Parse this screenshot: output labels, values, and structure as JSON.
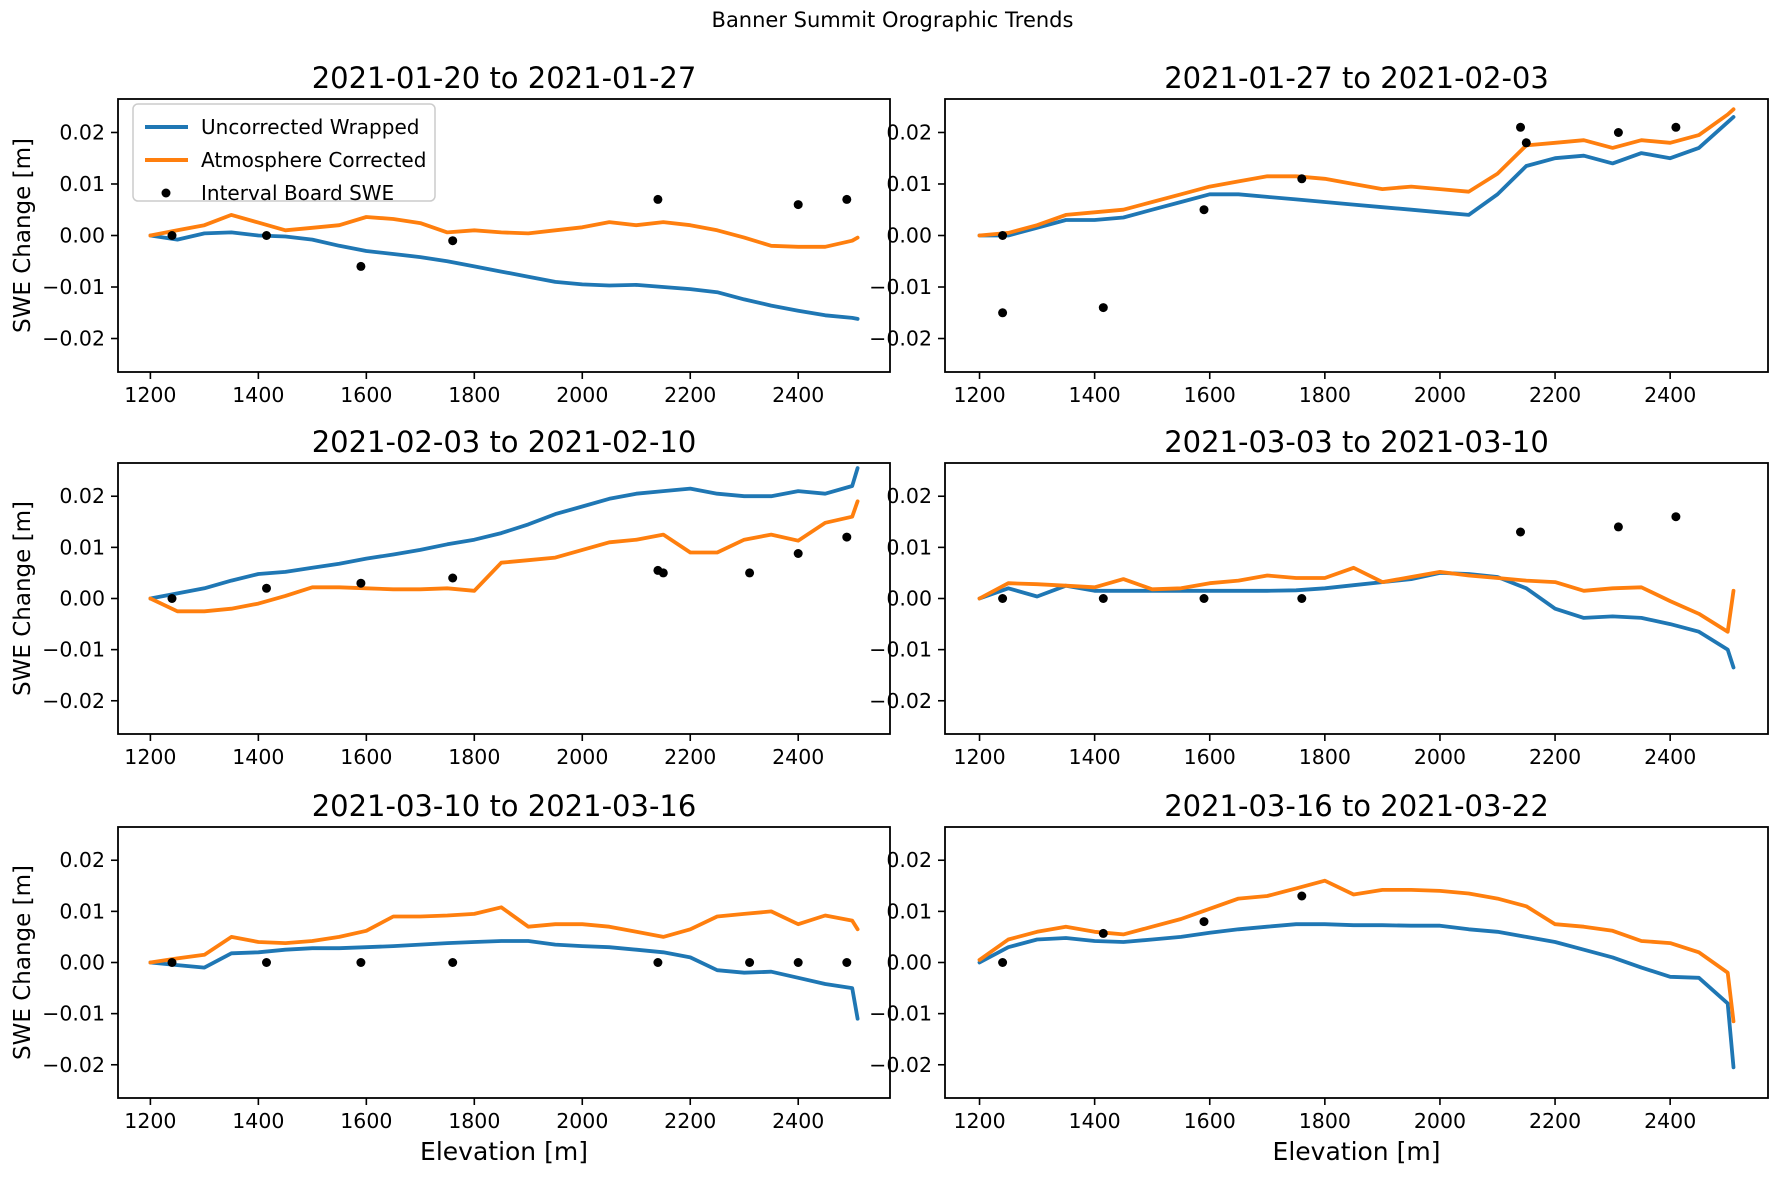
{
  "suptitle": "Banner Summit Orographic Trends",
  "axis": {
    "xlabel": "Elevation [m]",
    "ylabel": "SWE Change [m]",
    "xlim": [
      1140,
      2570
    ],
    "ylim": [
      -0.0265,
      0.0265
    ],
    "xticks": [
      1200,
      1400,
      1600,
      1800,
      2000,
      2200,
      2400
    ],
    "yticks": [
      {
        "value": 0.02,
        "label": "0.02"
      },
      {
        "value": 0.01,
        "label": "0.01"
      },
      {
        "value": 0.0,
        "label": "0.00"
      },
      {
        "value": -0.01,
        "label": "−0.01"
      },
      {
        "value": -0.02,
        "label": "−0.02"
      }
    ],
    "grid": false
  },
  "legend": {
    "position": "upper-left-first-subplot",
    "entries": [
      {
        "label": "Uncorrected Wrapped",
        "type": "line",
        "color": "#1f77b4"
      },
      {
        "label": "Atmosphere Corrected",
        "type": "line",
        "color": "#ff7f0e"
      },
      {
        "label": "Interval Board SWE",
        "type": "dot",
        "color": "#000000"
      }
    ]
  },
  "colors": {
    "uncorrected": "#1f77b4",
    "corrected": "#ff7f0e",
    "scatter": "#000000",
    "spine": "#000000"
  },
  "elevations": [
    1200,
    1250,
    1300,
    1350,
    1400,
    1450,
    1500,
    1550,
    1600,
    1650,
    1700,
    1750,
    1800,
    1850,
    1900,
    1950,
    2000,
    2050,
    2100,
    2150,
    2200,
    2250,
    2300,
    2350,
    2400,
    2450,
    2500,
    2510
  ],
  "chart_data": [
    {
      "type": "line+scatter",
      "title": "2021-01-20 to 2021-01-27",
      "series": [
        {
          "name": "Uncorrected Wrapped",
          "values": [
            0.0,
            -0.0008,
            0.0004,
            0.0006,
            0.0,
            -0.0002,
            -0.0008,
            -0.002,
            -0.003,
            -0.0036,
            -0.0042,
            -0.005,
            -0.006,
            -0.007,
            -0.008,
            -0.009,
            -0.0095,
            -0.0097,
            -0.0096,
            -0.01,
            -0.0104,
            -0.011,
            -0.0124,
            -0.0136,
            -0.0146,
            -0.0155,
            -0.016,
            -0.0162
          ]
        },
        {
          "name": "Atmosphere Corrected",
          "values": [
            0.0,
            0.001,
            0.002,
            0.004,
            0.0025,
            0.001,
            0.0015,
            0.002,
            0.0036,
            0.0032,
            0.0024,
            0.0006,
            0.001,
            0.0006,
            0.0004,
            0.001,
            0.0016,
            0.0026,
            0.002,
            0.0026,
            0.002,
            0.001,
            -0.0004,
            -0.002,
            -0.0022,
            -0.0022,
            -0.001,
            -0.0004
          ]
        }
      ],
      "scatter": [
        [
          1240,
          0.0
        ],
        [
          1415,
          0.0
        ],
        [
          1590,
          -0.006
        ],
        [
          1760,
          -0.001
        ],
        [
          2140,
          0.007
        ],
        [
          2400,
          0.006
        ],
        [
          2490,
          0.007
        ]
      ]
    },
    {
      "type": "line+scatter",
      "title": "2021-01-27 to 2021-02-03",
      "series": [
        {
          "name": "Uncorrected Wrapped",
          "values": [
            0.0,
            0.0,
            0.0015,
            0.003,
            0.003,
            0.0035,
            0.005,
            0.0065,
            0.008,
            0.008,
            0.0075,
            0.007,
            0.0065,
            0.006,
            0.0055,
            0.005,
            0.0045,
            0.004,
            0.008,
            0.0135,
            0.015,
            0.0155,
            0.014,
            0.016,
            0.015,
            0.017,
            0.022,
            0.023
          ]
        },
        {
          "name": "Atmosphere Corrected",
          "values": [
            0.0,
            0.0005,
            0.002,
            0.004,
            0.0045,
            0.005,
            0.0065,
            0.008,
            0.0095,
            0.0105,
            0.0115,
            0.0115,
            0.011,
            0.01,
            0.009,
            0.0095,
            0.009,
            0.0085,
            0.012,
            0.0175,
            0.018,
            0.0185,
            0.017,
            0.0185,
            0.018,
            0.0195,
            0.0235,
            0.0245
          ]
        }
      ],
      "scatter": [
        [
          1240,
          0.0
        ],
        [
          1240,
          -0.015
        ],
        [
          1415,
          -0.014
        ],
        [
          1590,
          0.005
        ],
        [
          1760,
          0.011
        ],
        [
          2140,
          0.021
        ],
        [
          2150,
          0.018
        ],
        [
          2310,
          0.02
        ],
        [
          2410,
          0.021
        ]
      ]
    },
    {
      "type": "line+scatter",
      "title": "2021-02-03 to 2021-02-10",
      "series": [
        {
          "name": "Uncorrected Wrapped",
          "values": [
            0.0,
            0.001,
            0.002,
            0.0035,
            0.0048,
            0.0052,
            0.006,
            0.0068,
            0.0078,
            0.0086,
            0.0095,
            0.0106,
            0.0115,
            0.0128,
            0.0145,
            0.0165,
            0.018,
            0.0195,
            0.0205,
            0.021,
            0.0215,
            0.0205,
            0.02,
            0.02,
            0.021,
            0.0205,
            0.022,
            0.0255
          ]
        },
        {
          "name": "Atmosphere Corrected",
          "values": [
            0.0,
            -0.0025,
            -0.0025,
            -0.002,
            -0.001,
            0.0005,
            0.0022,
            0.0022,
            0.002,
            0.0018,
            0.0018,
            0.002,
            0.0015,
            0.007,
            0.0075,
            0.008,
            0.0095,
            0.011,
            0.0115,
            0.0125,
            0.009,
            0.009,
            0.0115,
            0.0125,
            0.0113,
            0.0148,
            0.016,
            0.019
          ]
        }
      ],
      "scatter": [
        [
          1240,
          0.0
        ],
        [
          1415,
          0.002
        ],
        [
          1590,
          0.003
        ],
        [
          1760,
          0.004
        ],
        [
          2140,
          0.0055
        ],
        [
          2150,
          0.005
        ],
        [
          2310,
          0.005
        ],
        [
          2400,
          0.0088
        ],
        [
          2490,
          0.012
        ]
      ]
    },
    {
      "type": "line+scatter",
      "title": "2021-03-03 to 2021-03-10",
      "series": [
        {
          "name": "Uncorrected Wrapped",
          "values": [
            0.0,
            0.002,
            0.0004,
            0.0025,
            0.0015,
            0.0015,
            0.0015,
            0.0015,
            0.0015,
            0.0015,
            0.0015,
            0.0016,
            0.002,
            0.0026,
            0.0032,
            0.0038,
            0.005,
            0.0048,
            0.0042,
            0.002,
            -0.002,
            -0.0038,
            -0.0035,
            -0.0038,
            -0.005,
            -0.0065,
            -0.01,
            -0.0135
          ]
        },
        {
          "name": "Atmosphere Corrected",
          "values": [
            0.0,
            0.003,
            0.0028,
            0.0025,
            0.0022,
            0.0038,
            0.0018,
            0.002,
            0.003,
            0.0035,
            0.0045,
            0.004,
            0.004,
            0.006,
            0.0032,
            0.0042,
            0.0052,
            0.0045,
            0.004,
            0.0035,
            0.0032,
            0.0015,
            0.002,
            0.0022,
            -0.0005,
            -0.003,
            -0.0065,
            0.0015
          ]
        }
      ],
      "scatter": [
        [
          1240,
          0.0
        ],
        [
          1415,
          0.0
        ],
        [
          1590,
          0.0
        ],
        [
          1760,
          0.0
        ],
        [
          2140,
          0.013
        ],
        [
          2310,
          0.014
        ],
        [
          2410,
          0.016
        ]
      ]
    },
    {
      "type": "line+scatter",
      "title": "2021-03-10 to 2021-03-16",
      "series": [
        {
          "name": "Uncorrected Wrapped",
          "values": [
            0.0,
            -0.0005,
            -0.001,
            0.0018,
            0.002,
            0.0025,
            0.0028,
            0.0028,
            0.003,
            0.0032,
            0.0035,
            0.0038,
            0.004,
            0.0042,
            0.0042,
            0.0035,
            0.0032,
            0.003,
            0.0025,
            0.002,
            0.001,
            -0.0015,
            -0.002,
            -0.0018,
            -0.003,
            -0.0042,
            -0.005,
            -0.011
          ]
        },
        {
          "name": "Atmosphere Corrected",
          "values": [
            0.0,
            0.0008,
            0.0015,
            0.005,
            0.004,
            0.0038,
            0.0042,
            0.005,
            0.0062,
            0.009,
            0.009,
            0.0092,
            0.0095,
            0.0108,
            0.007,
            0.0075,
            0.0075,
            0.007,
            0.006,
            0.005,
            0.0065,
            0.009,
            0.0095,
            0.01,
            0.0075,
            0.0092,
            0.0082,
            0.0065
          ]
        }
      ],
      "scatter": [
        [
          1240,
          0.0
        ],
        [
          1415,
          0.0
        ],
        [
          1590,
          0.0
        ],
        [
          1760,
          0.0
        ],
        [
          2140,
          0.0
        ],
        [
          2310,
          0.0
        ],
        [
          2400,
          0.0
        ],
        [
          2490,
          0.0
        ]
      ]
    },
    {
      "type": "line+scatter",
      "title": "2021-03-16 to 2021-03-22",
      "series": [
        {
          "name": "Uncorrected Wrapped",
          "values": [
            0.0,
            0.003,
            0.0045,
            0.0048,
            0.0042,
            0.004,
            0.0045,
            0.005,
            0.0058,
            0.0065,
            0.007,
            0.0075,
            0.0075,
            0.0073,
            0.0073,
            0.0072,
            0.0072,
            0.0065,
            0.006,
            0.005,
            0.004,
            0.0025,
            0.001,
            -0.001,
            -0.0028,
            -0.003,
            -0.008,
            -0.0205
          ]
        },
        {
          "name": "Atmosphere Corrected",
          "values": [
            0.0005,
            0.0045,
            0.006,
            0.007,
            0.006,
            0.0055,
            0.007,
            0.0085,
            0.0105,
            0.0125,
            0.013,
            0.0145,
            0.016,
            0.0133,
            0.0142,
            0.0142,
            0.014,
            0.0135,
            0.0125,
            0.011,
            0.0075,
            0.007,
            0.0062,
            0.0042,
            0.0038,
            0.002,
            -0.002,
            -0.0115
          ]
        }
      ],
      "scatter": [
        [
          1240,
          0.0
        ],
        [
          1415,
          0.0057
        ],
        [
          1590,
          0.008
        ],
        [
          1760,
          0.013
        ]
      ]
    }
  ]
}
